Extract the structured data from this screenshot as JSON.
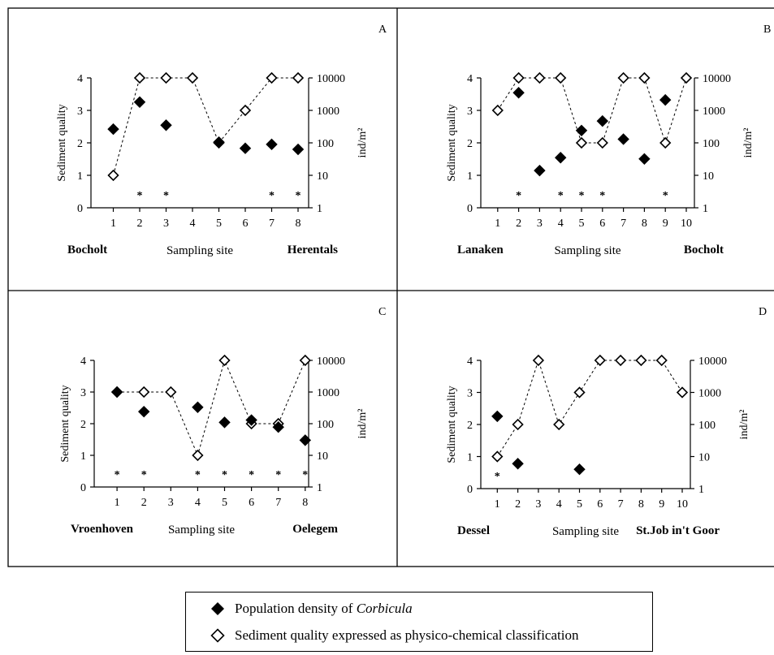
{
  "chart_data": [
    {
      "type": "scatter",
      "panel_letter": "A",
      "sites": [
        "1",
        "2",
        "3",
        "4",
        "5",
        "6",
        "7",
        "8"
      ],
      "start_label": "Bocholt",
      "end_label": "Herentals",
      "xlabel": "Sampling site",
      "ylabel_left": "Sediment quality",
      "ylabel_right": "ind/m²",
      "left_ticks": [
        "0",
        "1",
        "2",
        "3",
        "4"
      ],
      "right_ticks": [
        "1",
        "10",
        "100",
        "1000",
        "10000"
      ],
      "ylim_left": [
        0,
        4
      ],
      "ylim_right": [
        1,
        10000
      ],
      "right_scale": "log",
      "sediment_quality": [
        1,
        4,
        4,
        4,
        2,
        3,
        4,
        4
      ],
      "density": [
        265,
        1800,
        350,
        null,
        105,
        68,
        90,
        63
      ],
      "asterisk_sites": [
        2,
        3,
        7,
        8
      ]
    },
    {
      "type": "scatter",
      "panel_letter": "B",
      "sites": [
        "1",
        "2",
        "3",
        "4",
        "5",
        "6",
        "7",
        "8",
        "9",
        "10"
      ],
      "start_label": "Lanaken",
      "end_label": "Bocholt",
      "xlabel": "Sampling site",
      "ylabel_left": "Sediment quality",
      "ylabel_right": "ind/m²",
      "left_ticks": [
        "0",
        "1",
        "2",
        "3",
        "4"
      ],
      "right_ticks": [
        "1",
        "10",
        "100",
        "1000",
        "10000"
      ],
      "ylim_left": [
        0,
        4
      ],
      "ylim_right": [
        1,
        10000
      ],
      "right_scale": "log",
      "sediment_quality": [
        3,
        4,
        4,
        4,
        2,
        2,
        4,
        4,
        2,
        4
      ],
      "density": [
        null,
        3500,
        14,
        35,
        240,
        470,
        130,
        32,
        2100,
        null
      ],
      "asterisk_sites": [
        2,
        4,
        5,
        6,
        9
      ]
    },
    {
      "type": "scatter",
      "panel_letter": "C",
      "sites": [
        "1",
        "2",
        "3",
        "4",
        "5",
        "6",
        "7",
        "8"
      ],
      "start_label": "Vroenhoven",
      "end_label": "Oelegem",
      "xlabel": "Sampling site",
      "ylabel_left": "Sediment quality",
      "ylabel_right": "ind/m²",
      "left_ticks": [
        "0",
        "1",
        "2",
        "3",
        "4"
      ],
      "right_ticks": [
        "1",
        "10",
        "100",
        "1000",
        "10000"
      ],
      "ylim_left": [
        0,
        4
      ],
      "ylim_right": [
        1,
        10000
      ],
      "right_scale": "log",
      "sediment_quality": [
        3,
        3,
        3,
        1,
        4,
        2,
        2,
        4
      ],
      "density": [
        1000,
        240,
        null,
        330,
        110,
        130,
        78,
        30
      ],
      "asterisk_sites": [
        1,
        2,
        4,
        5,
        6,
        7,
        8
      ]
    },
    {
      "type": "scatter",
      "panel_letter": "D",
      "sites": [
        "1",
        "2",
        "3",
        "4",
        "5",
        "6",
        "7",
        "8",
        "9",
        "10"
      ],
      "start_label": "Dessel",
      "end_label": "St.Job in't Goor",
      "xlabel": "Sampling site",
      "ylabel_left": "Sediment quality",
      "ylabel_right": "ind/m²",
      "left_ticks": [
        "0",
        "1",
        "2",
        "3",
        "4"
      ],
      "right_ticks": [
        "1",
        "10",
        "100",
        "1000",
        "10000"
      ],
      "ylim_left": [
        0,
        4
      ],
      "ylim_right": [
        1,
        10000
      ],
      "right_scale": "log",
      "sediment_quality": [
        1,
        2,
        4,
        2,
        3,
        4,
        4,
        4,
        4,
        3
      ],
      "density": [
        180,
        6,
        null,
        null,
        4,
        null,
        null,
        null,
        null,
        null
      ],
      "asterisk_sites": [
        1
      ]
    }
  ],
  "legend": {
    "density_prefix": "Population density of ",
    "density_species": "Corbicula",
    "quality_label": "Sediment quality expressed as physico-chemical classification",
    "density_symbol": "filled-diamond-icon",
    "quality_symbol": "open-diamond-icon"
  }
}
